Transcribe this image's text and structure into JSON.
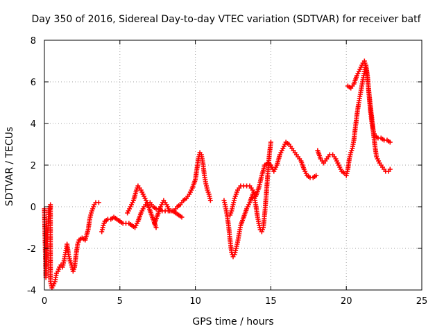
{
  "chart_data": {
    "type": "scatter",
    "title": "Day 350 of 2016, Sidereal Day-to-day VTEC variation (SDTVAR) for receiver batf",
    "xlabel": "GPS time / hours",
    "ylabel": "SDTVAR / TECUs",
    "xlim": [
      0,
      25
    ],
    "ylim": [
      -4,
      8
    ],
    "xticks": [
      "0",
      "5",
      "10",
      "15",
      "20",
      "25"
    ],
    "yticks": [
      "-4",
      "-2",
      "0",
      "2",
      "4",
      "6",
      "8"
    ],
    "grid": true,
    "marker": "+",
    "color": "#ff0000",
    "series": [
      {
        "segments": [
          [
            [
              0.0,
              -0.1
            ],
            [
              0.1,
              -3.4
            ],
            [
              0.2,
              -1.5
            ],
            [
              0.3,
              -0.2
            ],
            [
              0.4,
              0.1
            ],
            [
              0.4,
              -3.6
            ],
            [
              0.5,
              -3.9
            ],
            [
              0.7,
              -3.6
            ],
            [
              0.8,
              -3.2
            ],
            [
              0.9,
              -3.1
            ],
            [
              1.0,
              -2.9
            ],
            [
              1.1,
              -2.8
            ],
            [
              1.2,
              -2.9
            ],
            [
              1.3,
              -2.6
            ],
            [
              1.4,
              -2.2
            ],
            [
              1.5,
              -1.8
            ],
            [
              1.6,
              -2.3
            ],
            [
              1.7,
              -2.6
            ],
            [
              1.8,
              -2.8
            ],
            [
              1.9,
              -3.1
            ],
            [
              2.0,
              -2.9
            ],
            [
              2.1,
              -2.3
            ],
            [
              2.2,
              -1.8
            ],
            [
              2.3,
              -1.6
            ],
            [
              2.5,
              -1.5
            ],
            [
              2.7,
              -1.6
            ],
            [
              2.9,
              -1.1
            ],
            [
              3.0,
              -0.6
            ],
            [
              3.1,
              -0.3
            ],
            [
              3.2,
              -0.1
            ],
            [
              3.3,
              0.1
            ],
            [
              3.4,
              0.2
            ],
            [
              3.6,
              0.2
            ]
          ],
          [
            [
              3.8,
              -1.2
            ],
            [
              3.9,
              -0.9
            ],
            [
              4.0,
              -0.7
            ],
            [
              4.2,
              -0.6
            ],
            [
              4.4,
              -0.6
            ],
            [
              4.6,
              -0.5
            ],
            [
              4.8,
              -0.6
            ],
            [
              5.0,
              -0.7
            ],
            [
              5.2,
              -0.8
            ],
            [
              5.4,
              -0.8
            ],
            [
              5.6,
              -0.8
            ],
            [
              5.8,
              -0.9
            ],
            [
              6.0,
              -1.0
            ],
            [
              6.2,
              -0.7
            ],
            [
              6.4,
              -0.3
            ],
            [
              6.6,
              0.0
            ],
            [
              6.8,
              0.2
            ],
            [
              7.0,
              0.2
            ],
            [
              7.2,
              0.0
            ],
            [
              7.4,
              -0.1
            ],
            [
              7.6,
              -0.1
            ],
            [
              7.8,
              -0.2
            ],
            [
              8.0,
              -0.2
            ],
            [
              8.2,
              -0.2
            ],
            [
              8.4,
              -0.2
            ],
            [
              8.6,
              -0.2
            ],
            [
              8.8,
              0.0
            ],
            [
              9.0,
              0.1
            ],
            [
              9.2,
              0.3
            ],
            [
              9.4,
              0.4
            ],
            [
              9.6,
              0.6
            ],
            [
              9.8,
              0.9
            ],
            [
              10.0,
              1.3
            ],
            [
              10.1,
              1.8
            ],
            [
              10.2,
              2.3
            ],
            [
              10.3,
              2.6
            ],
            [
              10.4,
              2.5
            ],
            [
              10.5,
              2.1
            ],
            [
              10.6,
              1.5
            ],
            [
              10.7,
              1.1
            ],
            [
              10.8,
              0.8
            ],
            [
              10.9,
              0.6
            ],
            [
              11.0,
              0.3
            ]
          ],
          [
            [
              5.5,
              -0.3
            ],
            [
              5.7,
              0.0
            ],
            [
              5.9,
              0.3
            ],
            [
              6.1,
              0.8
            ],
            [
              6.2,
              1.0
            ],
            [
              6.4,
              0.8
            ],
            [
              6.6,
              0.5
            ],
            [
              6.8,
              0.2
            ],
            [
              7.0,
              -0.2
            ],
            [
              7.2,
              -0.6
            ],
            [
              7.4,
              -1.0
            ]
          ],
          [
            [
              7.3,
              -0.8
            ],
            [
              7.5,
              -0.4
            ],
            [
              7.7,
              0.0
            ],
            [
              7.9,
              0.3
            ],
            [
              8.1,
              0.1
            ],
            [
              8.3,
              -0.2
            ],
            [
              8.5,
              -0.2
            ],
            [
              8.7,
              -0.3
            ],
            [
              8.9,
              -0.4
            ],
            [
              9.1,
              -0.5
            ]
          ],
          [
            [
              11.9,
              0.3
            ],
            [
              12.0,
              0.0
            ],
            [
              12.1,
              -0.4
            ],
            [
              12.2,
              -0.9
            ],
            [
              12.3,
              -1.6
            ],
            [
              12.4,
              -2.2
            ],
            [
              12.5,
              -2.4
            ],
            [
              12.6,
              -2.3
            ],
            [
              12.7,
              -2.0
            ],
            [
              12.8,
              -1.7
            ],
            [
              12.9,
              -1.3
            ],
            [
              13.0,
              -0.9
            ],
            [
              13.2,
              -0.5
            ],
            [
              13.4,
              -0.1
            ],
            [
              13.6,
              0.2
            ],
            [
              13.8,
              0.6
            ],
            [
              13.9,
              0.5
            ],
            [
              14.0,
              0.1
            ],
            [
              14.1,
              -0.4
            ],
            [
              14.2,
              -0.8
            ],
            [
              14.3,
              -1.1
            ],
            [
              14.4,
              -1.2
            ],
            [
              14.5,
              -1.0
            ],
            [
              14.6,
              -0.3
            ],
            [
              14.7,
              0.6
            ],
            [
              14.8,
              1.6
            ],
            [
              14.9,
              2.5
            ],
            [
              15.0,
              3.1
            ]
          ],
          [
            [
              12.3,
              -0.4
            ],
            [
              12.4,
              -0.2
            ],
            [
              12.5,
              0.1
            ],
            [
              12.6,
              0.4
            ],
            [
              12.7,
              0.6
            ],
            [
              12.8,
              0.8
            ],
            [
              12.9,
              0.9
            ],
            [
              13.0,
              1.0
            ],
            [
              13.2,
              1.0
            ],
            [
              13.4,
              1.0
            ],
            [
              13.6,
              1.0
            ],
            [
              13.8,
              0.8
            ],
            [
              14.0,
              0.5
            ],
            [
              14.2,
              0.9
            ],
            [
              14.4,
              1.5
            ],
            [
              14.6,
              2.0
            ],
            [
              14.8,
              2.1
            ],
            [
              15.0,
              2.0
            ],
            [
              15.2,
              1.7
            ],
            [
              15.4,
              2.0
            ],
            [
              15.6,
              2.5
            ],
            [
              15.8,
              2.8
            ],
            [
              16.0,
              3.1
            ],
            [
              16.2,
              3.0
            ],
            [
              16.4,
              2.8
            ],
            [
              16.6,
              2.6
            ],
            [
              16.8,
              2.4
            ],
            [
              17.0,
              2.2
            ],
            [
              17.2,
              1.8
            ],
            [
              17.4,
              1.5
            ],
            [
              17.6,
              1.4
            ],
            [
              17.8,
              1.4
            ],
            [
              18.0,
              1.5
            ]
          ],
          [
            [
              18.1,
              2.7
            ],
            [
              18.3,
              2.3
            ],
            [
              18.5,
              2.1
            ],
            [
              18.7,
              2.3
            ],
            [
              18.9,
              2.5
            ],
            [
              19.1,
              2.5
            ],
            [
              19.3,
              2.3
            ],
            [
              19.5,
              2.0
            ],
            [
              19.7,
              1.7
            ],
            [
              19.9,
              1.6
            ],
            [
              20.0,
              1.5
            ],
            [
              20.1,
              1.8
            ],
            [
              20.2,
              2.3
            ],
            [
              20.3,
              2.6
            ],
            [
              20.4,
              2.8
            ],
            [
              20.5,
              3.2
            ],
            [
              20.6,
              3.8
            ],
            [
              20.7,
              4.4
            ],
            [
              20.8,
              4.9
            ],
            [
              20.9,
              5.3
            ],
            [
              21.0,
              5.7
            ],
            [
              21.1,
              6.1
            ],
            [
              21.2,
              6.5
            ],
            [
              21.3,
              6.8
            ],
            [
              21.4,
              6.3
            ],
            [
              21.5,
              5.4
            ],
            [
              21.6,
              4.6
            ],
            [
              21.7,
              4.0
            ],
            [
              21.8,
              3.6
            ],
            [
              21.9,
              3.4
            ],
            [
              22.1,
              3.3
            ],
            [
              22.3,
              3.3
            ],
            [
              22.5,
              3.2
            ],
            [
              22.7,
              3.2
            ],
            [
              22.9,
              3.1
            ]
          ],
          [
            [
              20.1,
              5.8
            ],
            [
              20.3,
              5.7
            ],
            [
              20.5,
              5.9
            ],
            [
              20.7,
              6.3
            ],
            [
              20.9,
              6.6
            ],
            [
              21.1,
              6.9
            ],
            [
              21.2,
              7.0
            ],
            [
              21.3,
              6.7
            ],
            [
              21.4,
              6.2
            ],
            [
              21.5,
              5.5
            ],
            [
              21.6,
              4.8
            ],
            [
              21.7,
              4.2
            ],
            [
              21.8,
              3.5
            ],
            [
              21.9,
              2.9
            ],
            [
              22.0,
              2.4
            ],
            [
              22.2,
              2.1
            ],
            [
              22.4,
              1.9
            ],
            [
              22.6,
              1.7
            ],
            [
              22.8,
              1.7
            ],
            [
              22.9,
              1.8
            ]
          ]
        ]
      }
    ]
  }
}
